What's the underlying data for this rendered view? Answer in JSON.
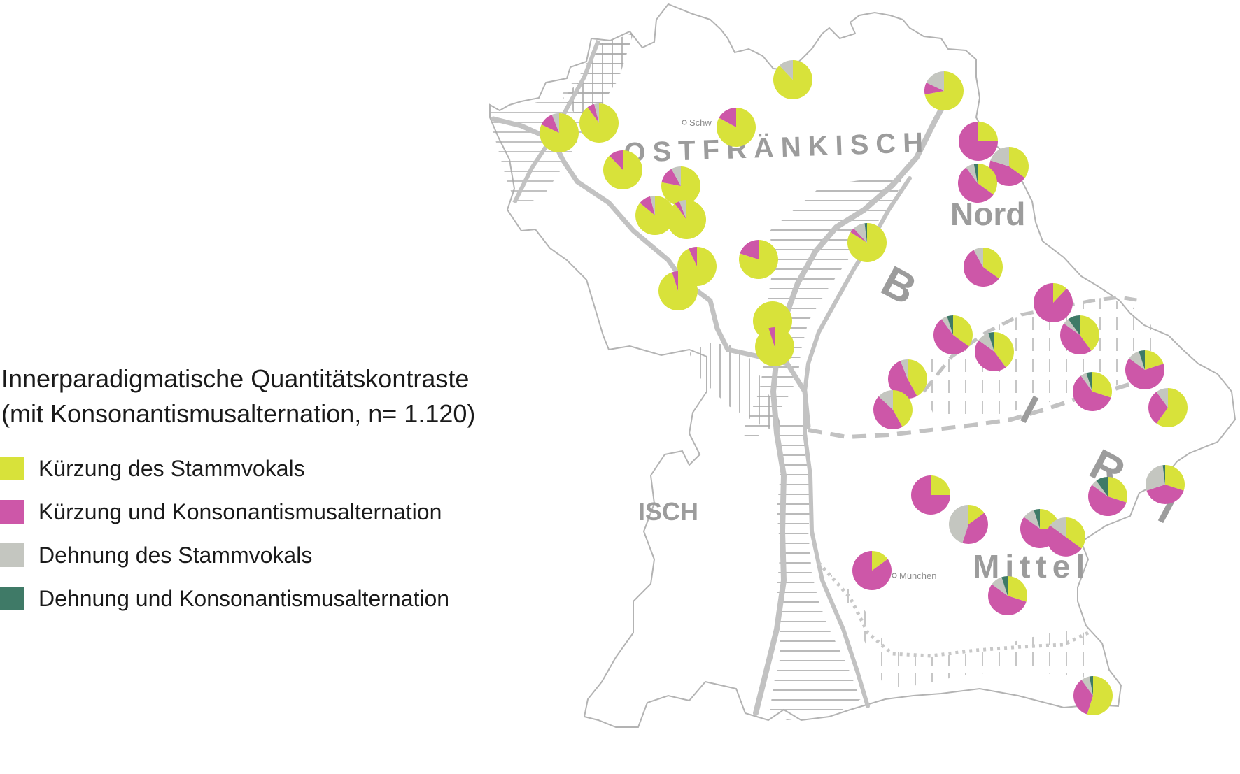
{
  "legend": {
    "title_line1": "Innerparadigmatische Quantitätskontraste",
    "title_line2": "(mit Konsonantismusalternation, n= 1.120)",
    "items": [
      {
        "label": "Kürzung des Stammvokals",
        "color": "#d8e23a"
      },
      {
        "label": "Kürzung und Konsonantismusalternation",
        "color": "#cd57a8"
      },
      {
        "label": "Dehnung des Stammvokals",
        "color": "#c4c6c0"
      },
      {
        "label": "Dehnung und Konsonantismusalternation",
        "color": "#3f7a67"
      }
    ]
  },
  "map": {
    "region_labels": {
      "ostfraenkisch": "OSTFRÄNKISCH",
      "nord": "Nord",
      "mittel": "Mittel",
      "isch": "ISCH",
      "bairisch_b": "B",
      "bairisch_i": "I",
      "bairisch_r": "R",
      "bairisch_end": "I"
    },
    "places": {
      "schweinfurt": "Schw",
      "muenchen": "München"
    }
  }
}
